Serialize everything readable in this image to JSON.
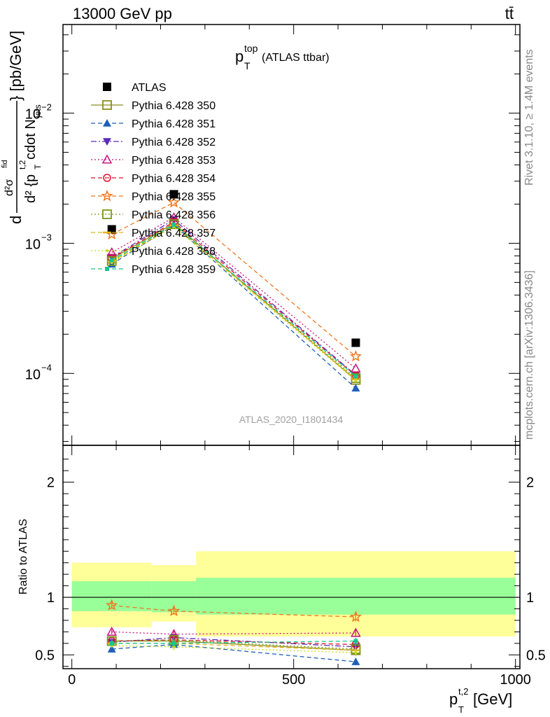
{
  "header": {
    "left": "13000 GeV pp",
    "right": "tt̄",
    "side_top": "Rivet 3.1.10, ≥ 1.4M events",
    "side_bottom": "mcplots.cern.ch [arXiv:1306.3436]",
    "analysis_tag": "ATLAS_2020_I1801434"
  },
  "plot_title": {
    "main": "p",
    "sup": "top",
    "sub": "T",
    "rest": " (ATLAS ttbar)"
  },
  "axes": {
    "xlabel": {
      "main": "p",
      "sup": "t,2",
      "sub": "T",
      "unit": " [GeV]"
    },
    "ylabel_top": "d²σ^fid / d² {p_T^t,2 cdot N_jets} [pb/GeV]",
    "ylabel_top_parts": {
      "d": "d",
      "num": "d²σ",
      "fid": "fid",
      "den": "d² {p",
      "den_sup": "t,2",
      "den_sub": "T",
      "den_rest": " cdot N",
      "jets": "jets",
      "close": "} [pb/GeV]"
    },
    "ylabel_ratio": "Ratio to ATLAS",
    "x_ticks": [
      "0",
      "500",
      "1000"
    ],
    "y_ticks_top": [
      "10",
      "10",
      "10"
    ],
    "y_ticks_top_exp": [
      "−2",
      "−3",
      "−4"
    ],
    "y_ticks_ratio": [
      "0.5",
      "1",
      "2"
    ]
  },
  "chart_data": {
    "type": "line",
    "xlim": [
      -20,
      1010
    ],
    "ylim_top": [
      2.8e-05,
      0.048
    ],
    "ylog_top": true,
    "ylim_ratio": [
      0.38,
      2.32
    ],
    "legend_position": "top-left",
    "x": [
      90,
      230,
      640
    ],
    "bins": [
      [
        0,
        180
      ],
      [
        180,
        280
      ],
      [
        280,
        1000
      ]
    ],
    "data": {
      "name": "ATLAS",
      "values": [
        0.00128,
        0.00238,
        0.000172
      ]
    },
    "bands": {
      "green": [
        [
          0.88,
          1.14
        ],
        [
          0.87,
          1.14
        ],
        [
          0.85,
          1.17
        ]
      ],
      "yellow": [
        [
          0.74,
          1.3
        ],
        [
          0.79,
          1.28
        ],
        [
          0.66,
          1.4
        ]
      ]
    },
    "series": [
      {
        "name": "Pythia 6.428 350",
        "color": "#8c8c1e",
        "marker": "square-open",
        "dash": "",
        "values": [
          0.00076,
          0.00142,
          8.9e-05
        ],
        "ratio": [
          0.62,
          0.62,
          0.54
        ],
        "ratio_err": [
          0.03,
          0.03,
          0.03
        ]
      },
      {
        "name": "Pythia 6.428 351",
        "color": "#1f5fb8",
        "marker": "triangle-up",
        "dash": "6,4",
        "values": [
          0.00069,
          0.00138,
          7.7e-05
        ],
        "ratio": [
          0.55,
          0.59,
          0.44
        ],
        "ratio_err": [
          0.02,
          0.03,
          0.03
        ]
      },
      {
        "name": "Pythia 6.428 352",
        "color": "#5a2bb8",
        "marker": "triangle-down",
        "dash": "8,3,2,3",
        "values": [
          0.00078,
          0.00152,
          9.7e-05
        ],
        "ratio": [
          0.61,
          0.65,
          0.57
        ],
        "ratio_err": [
          0.02,
          0.03,
          0.03
        ]
      },
      {
        "name": "Pythia 6.428 353",
        "color": "#c8147e",
        "marker": "triangle-open",
        "dash": "2,3",
        "values": [
          0.00085,
          0.00158,
          0.000109
        ],
        "ratio": [
          0.7,
          0.68,
          0.69
        ],
        "ratio_err": [
          0.02,
          0.03,
          0.03
        ]
      },
      {
        "name": "Pythia 6.428 354",
        "color": "#e0142c",
        "marker": "circle-open",
        "dash": "6,4",
        "values": [
          0.00077,
          0.00146,
          9.6e-05
        ],
        "ratio": [
          0.62,
          0.63,
          0.59
        ],
        "ratio_err": [
          0.02,
          0.03,
          0.03
        ]
      },
      {
        "name": "Pythia 6.428 355",
        "color": "#f07820",
        "marker": "star-open",
        "dash": "6,4",
        "values": [
          0.00117,
          0.00206,
          0.000135
        ],
        "ratio": [
          0.93,
          0.88,
          0.83
        ],
        "ratio_err": [
          0.03,
          0.03,
          0.04
        ]
      },
      {
        "name": "Pythia 6.428 356",
        "color": "#7a9a14",
        "marker": "square-open",
        "dash": "2,3",
        "values": [
          0.00073,
          0.0014,
          9.2e-05
        ],
        "ratio": [
          0.62,
          0.63,
          0.55
        ],
        "ratio_err": [
          0.02,
          0.03,
          0.03
        ]
      },
      {
        "name": "Pythia 6.428 357",
        "color": "#e4b414",
        "marker": "dash",
        "dash": "6,4",
        "values": [
          0.00072,
          0.00137,
          9e-05
        ],
        "ratio": [
          0.6,
          0.6,
          0.54
        ],
        "ratio_err": [
          0.02,
          0.03,
          0.03
        ]
      },
      {
        "name": "Pythia 6.428 358",
        "color": "#c8dc14",
        "marker": "dot",
        "dash": "2,3",
        "values": [
          0.00071,
          0.00134,
          8.8e-05
        ],
        "ratio": [
          0.58,
          0.57,
          0.52
        ],
        "ratio_err": [
          0.02,
          0.03,
          0.03
        ]
      },
      {
        "name": "Pythia 6.428 359",
        "color": "#14c88c",
        "marker": "square-small",
        "dash": "6,4",
        "values": [
          0.00074,
          0.00139,
          9.5e-05
        ],
        "ratio": [
          0.6,
          0.6,
          0.62
        ],
        "ratio_err": [
          0.02,
          0.03,
          0.03
        ]
      }
    ]
  }
}
